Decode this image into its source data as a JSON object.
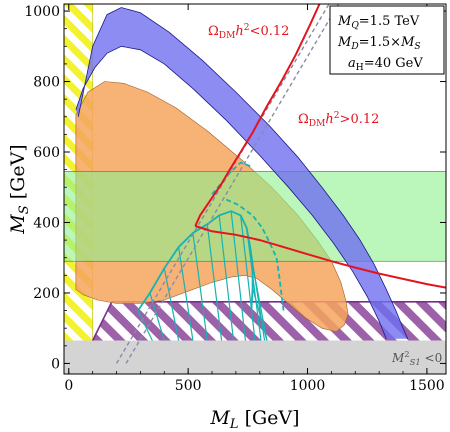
{
  "chart_data": {
    "type": "area",
    "xlabel_main": "M",
    "xlabel_sub": "L",
    "xlabel_unit": " [GeV]",
    "ylabel_main": "M",
    "ylabel_sub": "S",
    "ylabel_unit": " [GeV]",
    "xlim": [
      -20,
      1580
    ],
    "ylim": [
      -30,
      1020
    ],
    "xticks": [
      0,
      500,
      1000,
      1500
    ],
    "yticks": [
      0,
      200,
      400,
      600,
      800,
      1000
    ],
    "grid": false,
    "colors": {
      "blue": "#6f6ff0",
      "orange": "#f6a55e",
      "green": "#8ef08e",
      "yellow": "#f2f230",
      "purple": "#7a2c8a",
      "gray": "#d4d4d4",
      "red": "#e4141e",
      "teal": "#15b3b3",
      "dashed": "#8a8aa8"
    },
    "params": {
      "mq_label": "M_Q=1.5 TeV",
      "md_label": "M_D=1.5×M_S",
      "ah_label": "a_H=40 GeV"
    },
    "annotations": {
      "relic_low": "Ω_DM h² < 0.12",
      "relic_high": "Ω_DM h² > 0.12",
      "tachyon": "M²_S1 < 0"
    },
    "regions": {
      "gray_band_y": [
        -30,
        65
      ],
      "yellow_band_x": [
        -20,
        100
      ],
      "purple_band": {
        "x": [
          100,
          1580
        ],
        "y": [
          65,
          175
        ],
        "left_slope_x": [
          100,
          180
        ]
      },
      "green_band_y": [
        290,
        545
      ]
    },
    "blue_band": {
      "outer": [
        [
          40,
          700
        ],
        [
          100,
          900
        ],
        [
          160,
          990
        ],
        [
          220,
          1010
        ],
        [
          300,
          995
        ],
        [
          420,
          940
        ],
        [
          560,
          860
        ],
        [
          700,
          770
        ],
        [
          840,
          675
        ],
        [
          960,
          585
        ],
        [
          1060,
          500
        ],
        [
          1150,
          420
        ],
        [
          1220,
          350
        ],
        [
          1280,
          280
        ],
        [
          1330,
          210
        ],
        [
          1370,
          150
        ],
        [
          1400,
          100
        ],
        [
          1420,
          70
        ]
      ],
      "inner": [
        [
          1330,
          70
        ],
        [
          1300,
          120
        ],
        [
          1250,
          190
        ],
        [
          1190,
          260
        ],
        [
          1110,
          340
        ],
        [
          1020,
          420
        ],
        [
          920,
          500
        ],
        [
          800,
          590
        ],
        [
          660,
          690
        ],
        [
          520,
          780
        ],
        [
          400,
          850
        ],
        [
          300,
          890
        ],
        [
          220,
          900
        ],
        [
          160,
          880
        ],
        [
          110,
          840
        ],
        [
          60,
          780
        ],
        [
          30,
          720
        ]
      ]
    },
    "orange_region": [
      [
        30,
        705
      ],
      [
        80,
        770
      ],
      [
        150,
        800
      ],
      [
        230,
        795
      ],
      [
        330,
        770
      ],
      [
        450,
        725
      ],
      [
        580,
        660
      ],
      [
        720,
        580
      ],
      [
        850,
        500
      ],
      [
        960,
        420
      ],
      [
        1040,
        350
      ],
      [
        1100,
        290
      ],
      [
        1140,
        230
      ],
      [
        1160,
        180
      ],
      [
        1170,
        140
      ],
      [
        1155,
        110
      ],
      [
        1120,
        90
      ],
      [
        1060,
        100
      ],
      [
        990,
        130
      ],
      [
        920,
        170
      ],
      [
        850,
        210
      ],
      [
        790,
        240
      ],
      [
        740,
        250
      ],
      [
        680,
        245
      ],
      [
        600,
        230
      ],
      [
        500,
        205
      ],
      [
        400,
        180
      ],
      [
        300,
        170
      ],
      [
        200,
        170
      ],
      [
        120,
        180
      ],
      [
        60,
        195
      ],
      [
        30,
        210
      ]
    ],
    "red_curve": [
      [
        530,
        390
      ],
      [
        550,
        420
      ],
      [
        600,
        470
      ],
      [
        640,
        510
      ],
      [
        670,
        545
      ],
      [
        720,
        600
      ],
      [
        770,
        655
      ],
      [
        830,
        730
      ],
      [
        890,
        800
      ],
      [
        950,
        875
      ],
      [
        1010,
        960
      ],
      [
        1050,
        1020
      ]
    ],
    "red_curve_lower": [
      [
        530,
        390
      ],
      [
        600,
        375
      ],
      [
        700,
        365
      ],
      [
        800,
        350
      ],
      [
        900,
        330
      ],
      [
        1000,
        310
      ],
      [
        1100,
        290
      ],
      [
        1200,
        272
      ],
      [
        1300,
        255
      ],
      [
        1400,
        240
      ],
      [
        1500,
        225
      ],
      [
        1580,
        215
      ]
    ],
    "teal_hatched": [
      [
        290,
        150
      ],
      [
        340,
        200
      ],
      [
        400,
        270
      ],
      [
        460,
        330
      ],
      [
        520,
        370
      ],
      [
        580,
        395
      ],
      [
        630,
        420
      ],
      [
        680,
        432
      ],
      [
        720,
        420
      ],
      [
        745,
        385
      ],
      [
        760,
        330
      ],
      [
        770,
        280
      ],
      [
        770,
        215
      ],
      [
        765,
        150
      ]
    ],
    "teal_dashed": [
      [
        660,
        465
      ],
      [
        710,
        450
      ],
      [
        770,
        420
      ],
      [
        810,
        385
      ],
      [
        840,
        345
      ],
      [
        870,
        300
      ],
      [
        880,
        255
      ],
      [
        890,
        200
      ],
      [
        900,
        150
      ]
    ],
    "teal_dashed_upper": [
      [
        600,
        480
      ],
      [
        680,
        545
      ],
      [
        720,
        570
      ],
      [
        760,
        560
      ]
    ],
    "gray_dashed_1": [
      [
        200,
        0
      ],
      [
        1090,
        1020
      ]
    ],
    "gray_dashed_2": [
      [
        240,
        0
      ],
      [
        1130,
        1020
      ]
    ]
  }
}
